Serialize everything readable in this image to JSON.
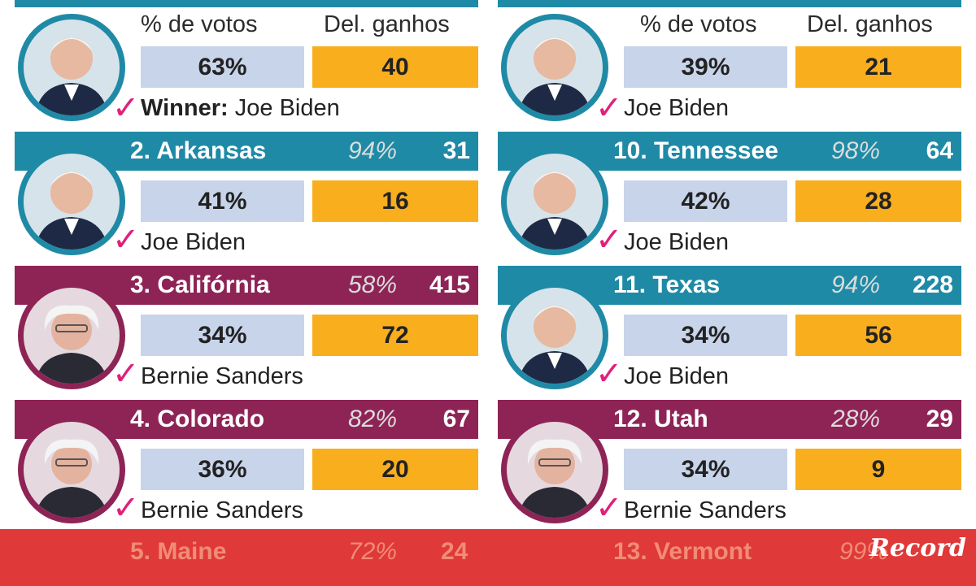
{
  "headers": {
    "votes_label": "% de votos",
    "delegates_label": "Del. ganhos"
  },
  "colors": {
    "biden": "#1f8aa6",
    "sanders": "#8e2456",
    "votes_box": "#c8d4ea",
    "delegates_box": "#f9ae1e",
    "check": "#e0207a"
  },
  "left_column": {
    "first": {
      "votes": "63%",
      "delegates": "40",
      "winner_prefix": "Winner:",
      "winner": "Joe Biden",
      "avatar": "biden-portrait"
    },
    "states": [
      {
        "name": "2. Arkansas",
        "reported": "94%",
        "total_delegates": "31",
        "votes": "41%",
        "delegates": "16",
        "winner": "Joe Biden",
        "avatar": "biden-portrait"
      },
      {
        "name": "3. Califórnia",
        "reported": "58%",
        "total_delegates": "415",
        "votes": "34%",
        "delegates": "72",
        "winner": "Bernie Sanders",
        "avatar": "sanders-portrait"
      },
      {
        "name": "4. Colorado",
        "reported": "82%",
        "total_delegates": "67",
        "votes": "36%",
        "delegates": "20",
        "winner": "Bernie Sanders",
        "avatar": "sanders-portrait"
      }
    ],
    "faded": {
      "name": "5. Maine",
      "reported": "72%",
      "total_delegates": "24"
    }
  },
  "right_column": {
    "first": {
      "votes": "39%",
      "delegates": "21",
      "winner": "Joe Biden",
      "avatar": "biden-portrait"
    },
    "states": [
      {
        "name": "10. Tennessee",
        "reported": "98%",
        "total_delegates": "64",
        "votes": "42%",
        "delegates": "28",
        "winner": "Joe Biden",
        "avatar": "biden-portrait"
      },
      {
        "name": "11. Texas",
        "reported": "94%",
        "total_delegates": "228",
        "votes": "34%",
        "delegates": "56",
        "winner": "Joe Biden",
        "avatar": "biden-portrait"
      },
      {
        "name": "12. Utah",
        "reported": "28%",
        "total_delegates": "29",
        "votes": "34%",
        "delegates": "9",
        "winner": "Bernie Sanders",
        "avatar": "sanders-portrait"
      }
    ],
    "faded": {
      "name": "13. Vermont",
      "reported": "99%"
    }
  },
  "check_mark": "✓",
  "logo": "Record"
}
